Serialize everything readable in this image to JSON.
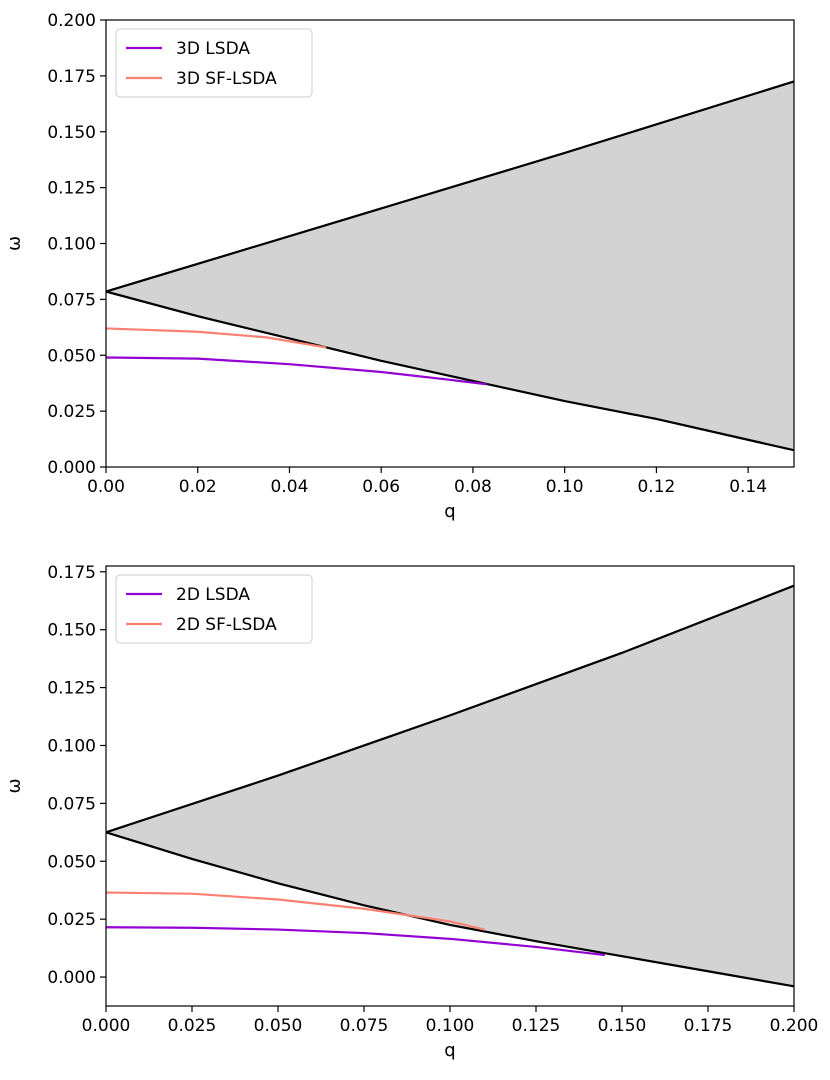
{
  "chart_data": [
    {
      "type": "line",
      "xlabel": "q",
      "ylabel": "ω",
      "xlim": [
        0.0,
        0.15
      ],
      "ylim": [
        0.0,
        0.2
      ],
      "xticks": [
        "0.00",
        "0.02",
        "0.04",
        "0.06",
        "0.08",
        "0.10",
        "0.12",
        "0.14"
      ],
      "yticks": [
        "0.000",
        "0.025",
        "0.050",
        "0.075",
        "0.100",
        "0.125",
        "0.150",
        "0.175",
        "0.200"
      ],
      "legend_position": "top-left",
      "shaded_region": {
        "fill": "#d3d3d3",
        "edge_color": "#000000",
        "upper": {
          "x": [
            0.0,
            0.05,
            0.1,
            0.15
          ],
          "y": [
            0.0785,
            0.1095,
            0.1405,
            0.1725
          ]
        },
        "lower": {
          "x": [
            0.0,
            0.02,
            0.04,
            0.06,
            0.08,
            0.1,
            0.12,
            0.15
          ],
          "y": [
            0.0785,
            0.0675,
            0.0575,
            0.0475,
            0.0385,
            0.0295,
            0.0215,
            0.0075
          ]
        }
      },
      "series": [
        {
          "name": "3D LSDA",
          "color": "#9400d3",
          "x": [
            0.0,
            0.02,
            0.04,
            0.06,
            0.075,
            0.083
          ],
          "y": [
            0.049,
            0.0485,
            0.046,
            0.0425,
            0.039,
            0.037
          ]
        },
        {
          "name": "3D SF-LSDA",
          "color": "#fa8072",
          "x": [
            0.0,
            0.02,
            0.035,
            0.048
          ],
          "y": [
            0.062,
            0.0605,
            0.058,
            0.0535
          ]
        }
      ]
    },
    {
      "type": "line",
      "xlabel": "q",
      "ylabel": "ω",
      "xlim": [
        0.0,
        0.2
      ],
      "ylim": [
        -0.0125,
        0.1775
      ],
      "xticks": [
        "0.000",
        "0.025",
        "0.050",
        "0.075",
        "0.100",
        "0.125",
        "0.150",
        "0.175",
        "0.200"
      ],
      "yticks": [
        "0.000",
        "0.025",
        "0.050",
        "0.075",
        "0.100",
        "0.125",
        "0.150",
        "0.175"
      ],
      "legend_position": "top-left",
      "shaded_region": {
        "fill": "#d3d3d3",
        "edge_color": "#000000",
        "upper": {
          "x": [
            0.0,
            0.05,
            0.1,
            0.15,
            0.2
          ],
          "y": [
            0.0625,
            0.087,
            0.113,
            0.14,
            0.169
          ]
        },
        "lower": {
          "x": [
            0.0,
            0.025,
            0.05,
            0.075,
            0.1,
            0.125,
            0.15,
            0.175,
            0.2
          ],
          "y": [
            0.0625,
            0.051,
            0.0405,
            0.031,
            0.0225,
            0.0155,
            0.009,
            0.0025,
            -0.004
          ]
        }
      },
      "series": [
        {
          "name": "2D LSDA",
          "color": "#9400d3",
          "x": [
            0.0,
            0.025,
            0.05,
            0.075,
            0.1,
            0.125,
            0.145
          ],
          "y": [
            0.0215,
            0.0213,
            0.0205,
            0.019,
            0.0165,
            0.013,
            0.0095
          ]
        },
        {
          "name": "2D SF-LSDA",
          "color": "#fa8072",
          "x": [
            0.0,
            0.025,
            0.05,
            0.075,
            0.1,
            0.11
          ],
          "y": [
            0.0365,
            0.036,
            0.0335,
            0.0295,
            0.024,
            0.0205
          ]
        }
      ]
    }
  ]
}
